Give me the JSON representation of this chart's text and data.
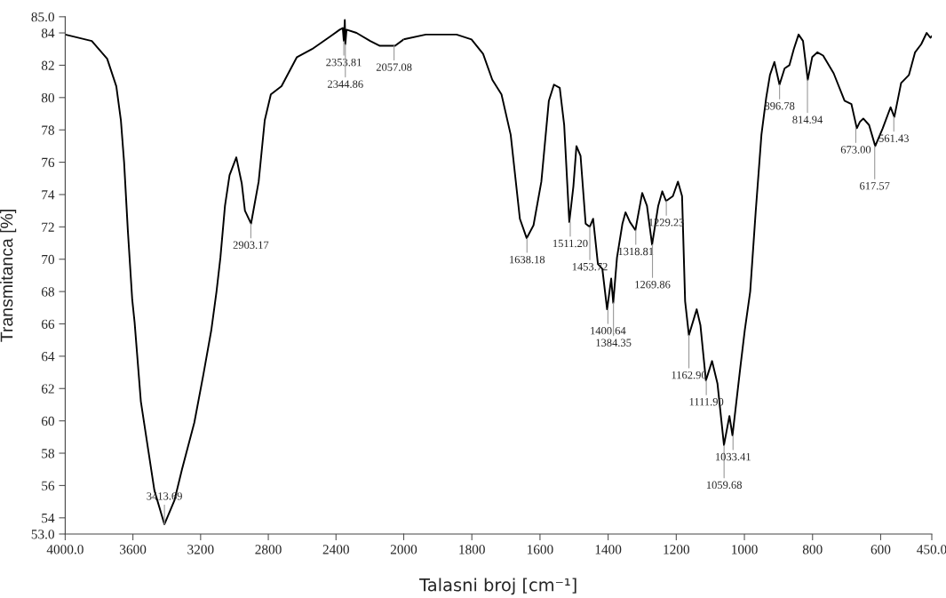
{
  "chart_data": [
    {
      "type": "line",
      "ylabel": "Transmitanca [%]",
      "x": [
        4000,
        3843,
        3752,
        3698,
        3671,
        3652,
        3630,
        3604,
        3590,
        3553,
        3508,
        3473,
        3414,
        3354,
        3310,
        3237,
        3183,
        3137,
        3106,
        3083,
        3056,
        3029,
        2989,
        2957,
        2938,
        2902,
        2857,
        2821,
        2785,
        2722,
        2631,
        2541,
        2432,
        2378,
        2360,
        2354,
        2348,
        2345,
        2338,
        2279,
        2198,
        2141,
        2051,
        2000
      ],
      "series": [
        {
          "color": "#000000",
          "values": [
            83.9,
            83.5,
            82.4,
            80.7,
            78.6,
            76.0,
            71.8,
            67.5,
            66.1,
            61.2,
            58.1,
            55.7,
            53.6,
            55.1,
            57.0,
            59.9,
            62.9,
            65.6,
            68.0,
            70.1,
            73.3,
            75.2,
            76.3,
            74.7,
            73.0,
            72.2,
            74.8,
            78.6,
            80.2,
            80.7,
            82.5,
            83.0,
            83.8,
            84.2,
            84.3,
            83.5,
            84.8,
            83.3,
            84.2,
            84.0,
            83.5,
            83.2,
            83.2,
            83.6
          ]
        }
      ],
      "xlim": [
        4000,
        2000
      ],
      "ylim": [
        53,
        85
      ],
      "xticks": [
        {
          "value": 4000,
          "label": "4000.0"
        },
        3600,
        3200,
        2800,
        2400,
        2000
      ],
      "yticks": [
        {
          "value": 53,
          "label": "53.0"
        },
        54,
        56,
        58,
        60,
        62,
        64,
        66,
        68,
        70,
        72,
        74,
        76,
        78,
        80,
        82,
        84,
        {
          "value": 85,
          "label": "85.0"
        }
      ],
      "annotations": [
        {
          "text": "3413.69",
          "x": 3413.69,
          "y": 53.6
        },
        {
          "text": "2903.17",
          "x": 2903.17,
          "y": 72.2
        },
        {
          "text": "2353.81",
          "x": 2353.81,
          "y": 83.5
        },
        {
          "text": "2344.86",
          "x": 2344.86,
          "y": 83.3
        },
        {
          "text": "2057.08",
          "x": 2057.08,
          "y": 83.2
        }
      ]
    },
    {
      "type": "line",
      "xlabel": "Talasni broj [cm⁻¹]",
      "x": [
        2000,
        1935,
        1845,
        1801,
        1767,
        1740,
        1713,
        1686,
        1659,
        1639,
        1619,
        1596,
        1574,
        1559,
        1542,
        1529,
        1514,
        1502,
        1493,
        1481,
        1466,
        1454,
        1444,
        1430,
        1417,
        1403,
        1391,
        1385,
        1374,
        1358,
        1349,
        1336,
        1320,
        1300,
        1286,
        1271,
        1253,
        1241,
        1230,
        1210,
        1195,
        1183,
        1174,
        1163,
        1140,
        1129,
        1113,
        1095,
        1079,
        1060,
        1044,
        1035,
        1012,
        999,
        983,
        967,
        950,
        936,
        925,
        912,
        897,
        882,
        868,
        855,
        841,
        828,
        814,
        801,
        786,
        769,
        738,
        706,
        686,
        670,
        661,
        651,
        634,
        616,
        594,
        571,
        560,
        540,
        517,
        499,
        481,
        465,
        454,
        450
      ],
      "series": [
        {
          "color": "#000000",
          "values": [
            83.6,
            83.9,
            83.9,
            83.6,
            82.7,
            81.1,
            80.2,
            77.7,
            72.5,
            71.3,
            72.1,
            74.8,
            79.8,
            80.8,
            80.6,
            78.3,
            72.3,
            74.5,
            77.0,
            76.4,
            72.2,
            72.0,
            72.5,
            69.7,
            69.4,
            66.9,
            68.8,
            67.3,
            70.1,
            72.2,
            72.9,
            72.3,
            71.8,
            74.1,
            73.3,
            70.9,
            73.3,
            74.2,
            73.6,
            73.9,
            74.8,
            73.9,
            67.4,
            65.3,
            66.9,
            65.9,
            62.5,
            63.7,
            62.3,
            58.5,
            60.3,
            59.1,
            63.3,
            65.6,
            68.0,
            72.9,
            77.7,
            80.0,
            81.4,
            82.2,
            80.8,
            81.8,
            82.0,
            83.0,
            83.9,
            83.5,
            81.1,
            82.5,
            82.8,
            82.6,
            81.5,
            79.8,
            79.6,
            78.1,
            78.5,
            78.7,
            78.3,
            77.0,
            78.1,
            79.4,
            78.8,
            80.9,
            81.4,
            82.8,
            83.3,
            84.0,
            83.7,
            83.8
          ]
        }
      ],
      "xlim": [
        2000,
        450
      ],
      "ylim": [
        53,
        85
      ],
      "xticks": [
        1800,
        1600,
        1400,
        1200,
        1000,
        800,
        600,
        {
          "value": 450,
          "label": "450.0"
        }
      ],
      "tick_labels": "x",
      "annotations": [
        {
          "text": "1638.18",
          "x": 1638.18,
          "y": 71.3
        },
        {
          "text": "1511.20",
          "x": 1511.2,
          "y": 72.3
        },
        {
          "text": "1453.72",
          "x": 1453.72,
          "y": 72.0
        },
        {
          "text": "1400.64",
          "x": 1400.64,
          "y": 66.9
        },
        {
          "text": "1384.35",
          "x": 1384.35,
          "y": 67.3
        },
        {
          "text": "1318.81",
          "x": 1318.81,
          "y": 71.8
        },
        {
          "text": "1269.86",
          "x": 1269.86,
          "y": 70.9
        },
        {
          "text": "1229.23",
          "x": 1229.23,
          "y": 73.6
        },
        {
          "text": "1162.90",
          "x": 1162.9,
          "y": 65.3
        },
        {
          "text": "1111.90",
          "x": 1111.9,
          "y": 62.5
        },
        {
          "text": "1059.68",
          "x": 1059.68,
          "y": 58.5
        },
        {
          "text": "1033.41",
          "x": 1033.41,
          "y": 59.1
        },
        {
          "text": "896.78",
          "x": 896.78,
          "y": 80.8
        },
        {
          "text": "814.94",
          "x": 814.94,
          "y": 81.1
        },
        {
          "text": "673.00",
          "x": 673.0,
          "y": 78.1
        },
        {
          "text": "617.57",
          "x": 617.57,
          "y": 77.0
        },
        {
          "text": "561.43",
          "x": 561.43,
          "y": 78.8
        }
      ]
    }
  ]
}
